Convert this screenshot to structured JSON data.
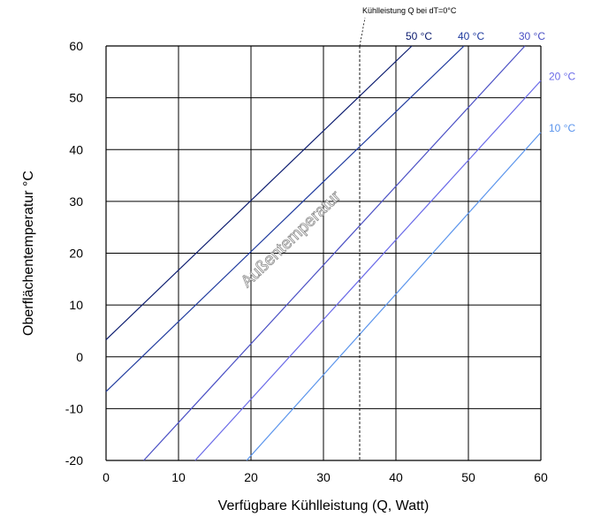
{
  "chart_data": {
    "type": "line",
    "title": "",
    "xlabel": "Verfügbare Kühlleistung (Q, Watt)",
    "ylabel": "Oberflächentemperatur °C",
    "xlim": [
      0,
      60
    ],
    "ylim": [
      -20,
      60
    ],
    "x_ticks": [
      "0",
      "10",
      "20",
      "30",
      "40",
      "50",
      "60"
    ],
    "y_ticks": [
      "-20",
      "-10",
      "0",
      "10",
      "20",
      "30",
      "40",
      "50",
      "60"
    ],
    "grid": true,
    "series_group_label": "Außentemperatur",
    "series": [
      {
        "name": "50 °C",
        "color": "#0a1a6e",
        "points": [
          [
            0,
            3.3
          ],
          [
            42.2,
            60
          ]
        ]
      },
      {
        "name": "40 °C",
        "color": "#1f3a9e",
        "points": [
          [
            0,
            -6.7
          ],
          [
            49.4,
            60
          ]
        ]
      },
      {
        "name": "30 °C",
        "color": "#4a4fc4",
        "points": [
          [
            5.2,
            -20
          ],
          [
            57.8,
            60
          ]
        ]
      },
      {
        "name": "20 °C",
        "color": "#6a6ae8",
        "points": [
          [
            12.3,
            -20
          ],
          [
            60,
            53.3
          ]
        ]
      },
      {
        "name": "10 °C",
        "color": "#5a94ec",
        "points": [
          [
            19.4,
            -20
          ],
          [
            60,
            43.3
          ]
        ]
      }
    ],
    "annotations": [
      {
        "text": "Kühlleistung Q bei dT=0°C",
        "x": 35,
        "style": "dashed-vertical"
      }
    ]
  }
}
